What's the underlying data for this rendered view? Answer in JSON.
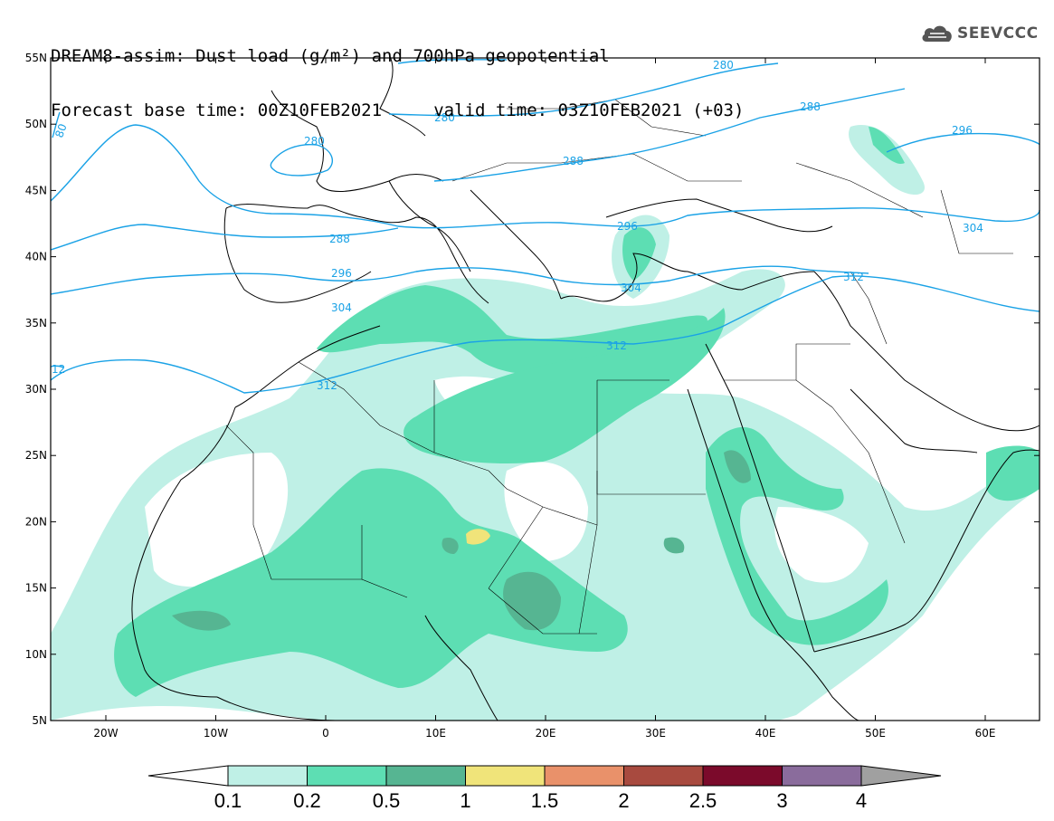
{
  "title": {
    "line1": "DREAM8-assim: Dust load (g/m²) and 700hPa geopotential",
    "line2": "Forecast base time: 00Z10FEB2021     valid time: 03Z10FEB2021 (+03)"
  },
  "logo": {
    "text": "SEEVCCC",
    "icon": "cloud-icon"
  },
  "axes": {
    "lat_ticks": [
      "55N",
      "50N",
      "45N",
      "40N",
      "35N",
      "30N",
      "25N",
      "20N",
      "15N",
      "10N",
      "5N"
    ],
    "lon_ticks": [
      "20W",
      "10W",
      "0",
      "10E",
      "20E",
      "30E",
      "40E",
      "50E",
      "60E"
    ]
  },
  "contours": [
    {
      "label": "280",
      "text": "280"
    },
    {
      "label": "280b",
      "text": "280"
    },
    {
      "label": "280c",
      "text": "280"
    },
    {
      "label": "288",
      "text": "288"
    },
    {
      "label": "288b",
      "text": "288"
    },
    {
      "label": "288c",
      "text": "288"
    },
    {
      "label": "296",
      "text": "296"
    },
    {
      "label": "296b",
      "text": "296"
    },
    {
      "label": "296c",
      "text": "296"
    },
    {
      "label": "304",
      "text": "304"
    },
    {
      "label": "304b",
      "text": "304"
    },
    {
      "label": "304c",
      "text": "304"
    },
    {
      "label": "312",
      "text": "312"
    },
    {
      "label": "312b",
      "text": "312"
    },
    {
      "label": "312c",
      "text": "312"
    },
    {
      "label": "12",
      "text": "12"
    },
    {
      "label": "80",
      "text": "80"
    }
  ],
  "colorbar": {
    "labels": [
      "0.1",
      "0.2",
      "0.5",
      "1",
      "1.5",
      "2",
      "2.5",
      "3",
      "4"
    ],
    "colors": [
      "#bff0e6",
      "#5ddeb3",
      "#56b592",
      "#f0e47a",
      "#e9916a",
      "#a84a3f",
      "#7b0a2b",
      "#8a6c9c",
      "#a0a0a0"
    ]
  },
  "colors": {
    "contour": "#1aa2e6",
    "dust_low": "#bff0e6",
    "dust_mid": "#5ddeb3",
    "dust_high": "#56b592",
    "dust_peak": "#f0e47a"
  }
}
